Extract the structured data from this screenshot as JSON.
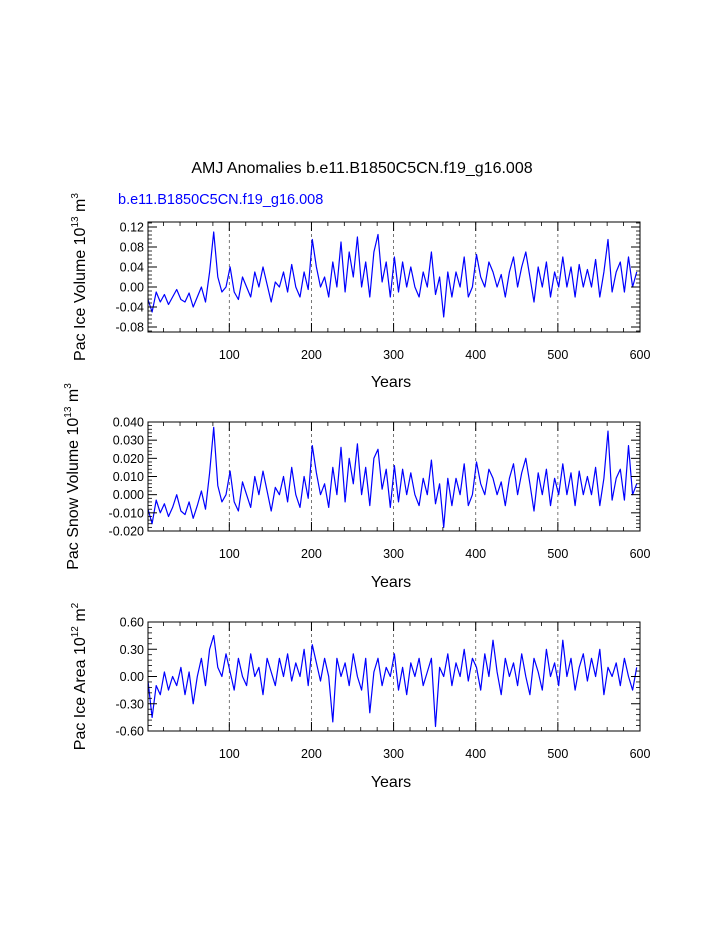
{
  "figure": {
    "title": "AMJ Anomalies b.e11.B1850C5CN.f19_g16.008",
    "subtitle": "b.e11.B1850C5CN.f19_g16.008",
    "subtitle_color": "#0000ff",
    "line_color": "#0000ff",
    "grid_color": "#555555"
  },
  "chart_data": [
    {
      "type": "line",
      "name": "Pac Ice Volume",
      "ylabel_main": "Pac Ice Volume 10",
      "ylabel_exp": "13",
      "ylabel_unit": " m",
      "ylabel_unit_exp": "3",
      "xlabel": "Years",
      "xlim": [
        1,
        600
      ],
      "ylim": [
        -0.09,
        0.13
      ],
      "xticks": [
        100,
        200,
        300,
        400,
        500,
        600
      ],
      "xtick_labels": [
        "100",
        "200",
        "300",
        "400",
        "500",
        "600"
      ],
      "yticks": [
        -0.08,
        -0.04,
        0.0,
        0.04,
        0.08,
        0.12
      ],
      "ytick_labels": [
        "-0.08",
        "-0.04",
        "0.00",
        "0.04",
        "0.08",
        "0.12"
      ],
      "grid_x": [
        100,
        200,
        300,
        400,
        500
      ],
      "series": [
        {
          "name": "Pac Ice Volume",
          "x_start": 1,
          "x_step": 5,
          "values": [
            -0.025,
            -0.05,
            -0.01,
            -0.03,
            -0.015,
            -0.035,
            -0.02,
            -0.005,
            -0.025,
            -0.03,
            -0.012,
            -0.04,
            -0.02,
            0.0,
            -0.03,
            0.03,
            0.11,
            0.02,
            -0.01,
            0.0,
            0.04,
            -0.01,
            -0.025,
            0.02,
            0.0,
            -0.02,
            0.03,
            0.0,
            0.04,
            0.005,
            -0.03,
            0.01,
            0.0,
            0.03,
            -0.01,
            0.045,
            0.0,
            -0.02,
            0.03,
            -0.005,
            0.095,
            0.04,
            0.0,
            0.02,
            -0.02,
            0.05,
            0.0,
            0.09,
            -0.01,
            0.07,
            0.02,
            0.1,
            0.0,
            0.05,
            -0.02,
            0.07,
            0.105,
            0.01,
            0.05,
            -0.02,
            0.06,
            -0.01,
            0.05,
            0.0,
            0.04,
            0.0,
            -0.02,
            0.03,
            0.0,
            0.07,
            -0.015,
            0.02,
            -0.06,
            0.03,
            -0.02,
            0.03,
            0.0,
            0.06,
            -0.02,
            0.0,
            0.065,
            0.02,
            0.0,
            0.05,
            0.03,
            0.0,
            0.025,
            -0.02,
            0.03,
            0.06,
            0.0,
            0.04,
            0.07,
            0.02,
            -0.03,
            0.04,
            0.0,
            0.05,
            -0.02,
            0.03,
            0.0,
            0.06,
            0.0,
            0.04,
            -0.02,
            0.045,
            0.0,
            0.035,
            0.0,
            0.055,
            -0.02,
            0.03,
            0.095,
            -0.01,
            0.03,
            0.05,
            -0.01,
            0.06,
            0.0,
            0.03
          ]
        }
      ]
    },
    {
      "type": "line",
      "name": "Pac Snow Volume",
      "ylabel_main": "Pac Snow Volume 10",
      "ylabel_exp": "13",
      "ylabel_unit": " m",
      "ylabel_unit_exp": "3",
      "xlabel": "Years",
      "xlim": [
        1,
        600
      ],
      "ylim": [
        -0.02,
        0.04
      ],
      "xticks": [
        100,
        200,
        300,
        400,
        500,
        600
      ],
      "xtick_labels": [
        "100",
        "200",
        "300",
        "400",
        "500",
        "600"
      ],
      "yticks": [
        -0.02,
        -0.01,
        0.0,
        0.01,
        0.02,
        0.03,
        0.04
      ],
      "ytick_labels": [
        "-0.020",
        "-0.010",
        "0.000",
        "0.010",
        "0.020",
        "0.030",
        "0.040"
      ],
      "grid_x": [
        100,
        200,
        300,
        400,
        500
      ],
      "series": [
        {
          "name": "Pac Snow Volume",
          "x_start": 1,
          "x_step": 5,
          "values": [
            -0.008,
            -0.016,
            -0.003,
            -0.01,
            -0.005,
            -0.012,
            -0.007,
            0.0,
            -0.009,
            -0.011,
            -0.004,
            -0.013,
            -0.006,
            0.002,
            -0.008,
            0.012,
            0.037,
            0.005,
            -0.004,
            0.0,
            0.013,
            -0.004,
            -0.009,
            0.007,
            0.0,
            -0.007,
            0.01,
            0.0,
            0.013,
            0.002,
            -0.009,
            0.004,
            0.0,
            0.01,
            -0.004,
            0.015,
            0.0,
            -0.007,
            0.01,
            -0.002,
            0.027,
            0.012,
            0.0,
            0.006,
            -0.007,
            0.015,
            0.0,
            0.026,
            -0.004,
            0.02,
            0.006,
            0.028,
            0.0,
            0.015,
            -0.006,
            0.02,
            0.025,
            0.003,
            0.014,
            -0.007,
            0.016,
            -0.004,
            0.014,
            0.0,
            0.012,
            0.0,
            -0.006,
            0.009,
            0.0,
            0.019,
            -0.005,
            0.006,
            -0.018,
            0.009,
            -0.006,
            0.009,
            0.0,
            0.017,
            -0.006,
            0.0,
            0.018,
            0.006,
            0.0,
            0.014,
            0.009,
            0.0,
            0.007,
            -0.006,
            0.009,
            0.017,
            0.0,
            0.012,
            0.02,
            0.006,
            -0.009,
            0.012,
            0.0,
            0.014,
            -0.006,
            0.009,
            0.0,
            0.017,
            0.0,
            0.012,
            -0.006,
            0.013,
            0.0,
            0.01,
            0.0,
            0.015,
            -0.006,
            0.009,
            0.035,
            -0.003,
            0.009,
            0.014,
            -0.003,
            0.027,
            0.0,
            0.006
          ]
        }
      ]
    },
    {
      "type": "line",
      "name": "Pac Ice Area",
      "ylabel_main": "Pac Ice Area 10",
      "ylabel_exp": "12",
      "ylabel_unit": " m",
      "ylabel_unit_exp": "2",
      "xlabel": "Years",
      "xlim": [
        1,
        600
      ],
      "ylim": [
        -0.6,
        0.6
      ],
      "xticks": [
        100,
        200,
        300,
        400,
        500,
        600
      ],
      "xtick_labels": [
        "100",
        "200",
        "300",
        "400",
        "500",
        "600"
      ],
      "yticks": [
        -0.6,
        -0.3,
        0.0,
        0.3,
        0.6
      ],
      "ytick_labels": [
        "-0.60",
        "-0.30",
        "0.00",
        "0.30",
        "0.60"
      ],
      "grid_x": [
        100,
        200,
        300,
        400,
        500
      ],
      "series": [
        {
          "name": "Pac Ice Area",
          "x_start": 1,
          "x_step": 5,
          "values": [
            -0.05,
            -0.45,
            -0.1,
            -0.2,
            0.05,
            -0.15,
            0.0,
            -0.1,
            0.1,
            -0.2,
            0.05,
            -0.3,
            0.0,
            0.2,
            -0.1,
            0.3,
            0.45,
            0.1,
            0.0,
            0.25,
            0.05,
            -0.15,
            0.2,
            0.0,
            -0.1,
            0.25,
            0.0,
            0.1,
            -0.2,
            0.2,
            0.05,
            -0.1,
            0.2,
            0.0,
            0.25,
            -0.05,
            0.15,
            0.0,
            0.3,
            -0.1,
            0.35,
            0.15,
            -0.05,
            0.2,
            0.0,
            -0.5,
            0.2,
            0.0,
            0.15,
            -0.1,
            0.25,
            0.0,
            -0.15,
            0.2,
            -0.4,
            0.05,
            0.2,
            -0.1,
            0.1,
            0.0,
            0.25,
            -0.15,
            0.1,
            -0.2,
            0.15,
            0.0,
            0.2,
            -0.1,
            0.05,
            0.2,
            -0.55,
            0.1,
            0.0,
            0.25,
            -0.1,
            0.15,
            0.0,
            0.3,
            -0.05,
            0.2,
            0.1,
            -0.15,
            0.25,
            0.0,
            0.4,
            0.05,
            -0.2,
            0.2,
            0.0,
            0.15,
            -0.1,
            0.25,
            0.0,
            -0.2,
            0.2,
            0.05,
            -0.15,
            0.3,
            0.0,
            0.15,
            -0.1,
            0.4,
            0.0,
            0.2,
            -0.15,
            0.1,
            0.25,
            -0.05,
            0.2,
            0.0,
            0.3,
            -0.2,
            0.1,
            0.0,
            0.15,
            -0.1,
            0.2,
            0.0,
            -0.15,
            0.1
          ]
        }
      ]
    }
  ]
}
